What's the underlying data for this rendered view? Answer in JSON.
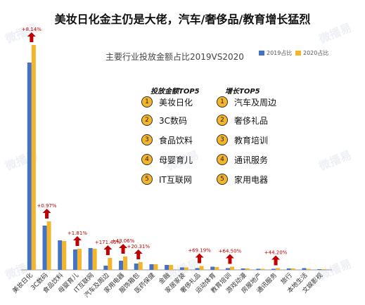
{
  "headline": "美妆日化金主仍是大佬，汽车/奢侈品/教育增长猛烈",
  "chart_data": {
    "type": "bar",
    "title": "主要行业投放金额占比2019VS2020",
    "categories": [
      "美妆日化",
      "3C数码",
      "食品饮料",
      "母婴育儿",
      "IT互联网",
      "汽车及周边",
      "家用电器",
      "服饰箱包",
      "医药保健",
      "金融",
      "家居家装",
      "奢侈礼品",
      "运动体育",
      "教育培训",
      "游戏动漫",
      "房屋地产",
      "通讯服务",
      "旅行",
      "本地生活",
      "文娱影视"
    ],
    "series": [
      {
        "name": "2019占比",
        "color": "#4472c4",
        "values": [
          29.5,
          6.3,
          4.2,
          2.9,
          3.1,
          0.6,
          1.3,
          0.9,
          0.8,
          0.7,
          0.35,
          0.25,
          0.45,
          0.25,
          0.2,
          0.15,
          0.15,
          0.2,
          0.25,
          0.1
        ]
      },
      {
        "name": "2020占比",
        "color": "#f5b52a",
        "values": [
          32.0,
          6.9,
          4.1,
          3.0,
          3.0,
          1.7,
          1.9,
          1.1,
          0.8,
          0.7,
          0.35,
          0.55,
          0.4,
          0.45,
          0.2,
          0.15,
          0.25,
          0.2,
          0.15,
          0.1
        ]
      }
    ],
    "ylim": [
      0,
      34
    ],
    "annotations": [
      {
        "category": "美妆日化",
        "text": "+8.14%"
      },
      {
        "category": "3C数码",
        "text": "+0.97%"
      },
      {
        "category": "母婴育儿",
        "text": "+1.81%"
      },
      {
        "category": "汽车及周边",
        "text": "+171.46%"
      },
      {
        "category": "家用电器",
        "text": "+43.06%"
      },
      {
        "category": "服饰箱包",
        "text": "+20.31%"
      },
      {
        "category": "奢侈礼品",
        "text": "+69.19%"
      },
      {
        "category": "教育培训",
        "text": "+64.50%"
      },
      {
        "category": "通讯服务",
        "text": "+44.20%"
      }
    ],
    "grid": false,
    "legend": "top-right"
  },
  "top_lists": {
    "amount_title": "投放金额TOP5",
    "amount_items": [
      {
        "rank": "1",
        "label": "美妆日化"
      },
      {
        "rank": "2",
        "label": "3C数码"
      },
      {
        "rank": "3",
        "label": "食品饮料"
      },
      {
        "rank": "4",
        "label": "母婴育儿"
      },
      {
        "rank": "5",
        "label": "IT互联网"
      }
    ],
    "growth_title": "增长TOP5",
    "growth_items": [
      {
        "rank": "1",
        "label": "汽车及周边"
      },
      {
        "rank": "2",
        "label": "奢侈礼品"
      },
      {
        "rank": "3",
        "label": "教育培训"
      },
      {
        "rank": "4",
        "label": "通讯服务"
      },
      {
        "rank": "5",
        "label": "家用电器"
      }
    ]
  },
  "watermark": {
    "text": "微播易"
  },
  "colors": {
    "arrow": "#c00000",
    "annotation": "#c00000",
    "axis": "#999999"
  }
}
